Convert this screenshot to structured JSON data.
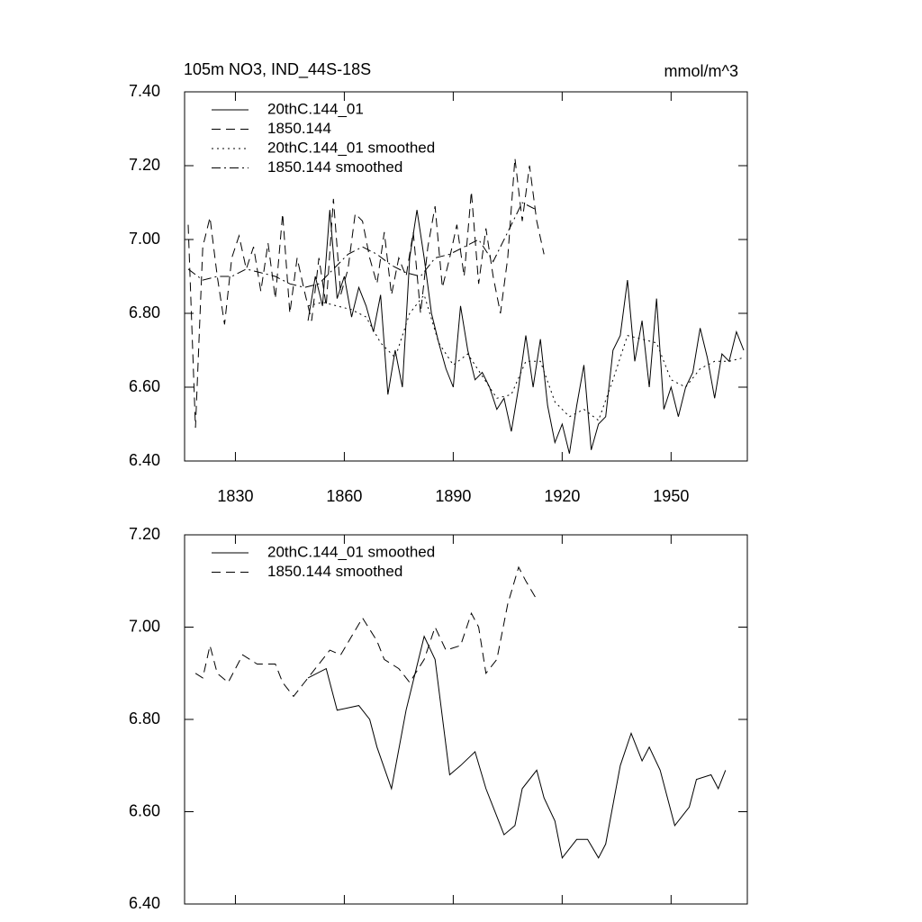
{
  "chart_data": [
    {
      "type": "line",
      "title": "105m NO3, IND_44S-18S",
      "units": "mmol/m^3",
      "xlim": [
        1816,
        1971
      ],
      "xticks": [
        1830,
        1860,
        1890,
        1920,
        1950
      ],
      "xtick_labels": true,
      "ylim": [
        6.4,
        7.4
      ],
      "yticks": [
        {
          "value": 6.4,
          "label": "6.40"
        },
        {
          "value": 6.6,
          "label": "6.60"
        },
        {
          "value": 6.8,
          "label": "6.80"
        },
        {
          "value": 7.0,
          "label": "7.00"
        },
        {
          "value": 7.2,
          "label": "7.20"
        },
        {
          "value": 7.4,
          "label": "7.40"
        }
      ],
      "series": [
        {
          "name": "20thC.144_01",
          "color": "#000000",
          "dash": "solid",
          "x": [
            1850,
            1852,
            1854,
            1856,
            1858,
            1860,
            1862,
            1864,
            1866,
            1868,
            1870,
            1872,
            1874,
            1876,
            1878,
            1880,
            1882,
            1884,
            1886,
            1888,
            1890,
            1892,
            1894,
            1896,
            1898,
            1900,
            1902,
            1904,
            1906,
            1908,
            1910,
            1912,
            1914,
            1916,
            1918,
            1920,
            1922,
            1924,
            1926,
            1928,
            1930,
            1932,
            1934,
            1936,
            1938,
            1940,
            1942,
            1944,
            1946,
            1948,
            1950,
            1952,
            1954,
            1956,
            1958,
            1960,
            1962,
            1964,
            1966,
            1968,
            1970
          ],
          "values": [
            6.78,
            6.9,
            6.82,
            7.08,
            6.84,
            6.9,
            6.79,
            6.87,
            6.82,
            6.75,
            6.85,
            6.58,
            6.7,
            6.6,
            6.95,
            7.08,
            6.95,
            6.8,
            6.72,
            6.65,
            6.6,
            6.82,
            6.7,
            6.62,
            6.64,
            6.6,
            6.54,
            6.57,
            6.48,
            6.6,
            6.74,
            6.6,
            6.73,
            6.55,
            6.45,
            6.5,
            6.42,
            6.55,
            6.66,
            6.43,
            6.5,
            6.52,
            6.7,
            6.74,
            6.89,
            6.67,
            6.78,
            6.6,
            6.84,
            6.54,
            6.6,
            6.52,
            6.6,
            6.64,
            6.76,
            6.68,
            6.57,
            6.69,
            6.67,
            6.75,
            6.7
          ]
        },
        {
          "name": "1850.144",
          "color": "#000000",
          "dash": "dashed",
          "x": [
            1817,
            1819,
            1821,
            1823,
            1825,
            1827,
            1829,
            1831,
            1833,
            1835,
            1837,
            1839,
            1841,
            1843,
            1845,
            1847,
            1849,
            1851,
            1853,
            1855,
            1857,
            1859,
            1861,
            1863,
            1865,
            1867,
            1869,
            1871,
            1873,
            1875,
            1877,
            1879,
            1881,
            1883,
            1885,
            1887,
            1889,
            1891,
            1893,
            1895,
            1897,
            1899,
            1901,
            1903,
            1905,
            1907,
            1909,
            1911,
            1913,
            1915
          ],
          "values": [
            7.04,
            6.49,
            6.98,
            7.06,
            6.9,
            6.77,
            6.95,
            7.01,
            6.92,
            6.98,
            6.86,
            6.99,
            6.84,
            7.07,
            6.8,
            6.95,
            6.86,
            6.78,
            6.95,
            6.82,
            7.11,
            6.85,
            6.92,
            7.07,
            7.05,
            6.95,
            6.88,
            7.02,
            6.85,
            6.95,
            6.9,
            7.02,
            6.8,
            6.98,
            7.09,
            6.87,
            6.95,
            7.04,
            6.9,
            7.13,
            6.88,
            7.03,
            6.9,
            6.8,
            6.95,
            7.22,
            7.05,
            7.2,
            7.05,
            6.96
          ]
        },
        {
          "name": "20thC.144_01 smoothed",
          "color": "#000000",
          "dash": "dotted",
          "x": [
            1850,
            1854,
            1858,
            1862,
            1866,
            1870,
            1874,
            1878,
            1882,
            1886,
            1890,
            1894,
            1898,
            1902,
            1906,
            1910,
            1914,
            1918,
            1922,
            1926,
            1930,
            1934,
            1938,
            1942,
            1946,
            1950,
            1954,
            1958,
            1962,
            1966,
            1970
          ],
          "values": [
            6.82,
            6.83,
            6.82,
            6.81,
            6.79,
            6.72,
            6.68,
            6.8,
            6.85,
            6.72,
            6.66,
            6.69,
            6.63,
            6.57,
            6.58,
            6.67,
            6.67,
            6.56,
            6.52,
            6.54,
            6.51,
            6.62,
            6.74,
            6.73,
            6.72,
            6.62,
            6.6,
            6.65,
            6.67,
            6.67,
            6.68
          ]
        },
        {
          "name": "1850.144 smoothed",
          "color": "#000000",
          "dash": "dashdot",
          "x": [
            1817,
            1821,
            1825,
            1829,
            1833,
            1837,
            1841,
            1845,
            1849,
            1853,
            1857,
            1861,
            1865,
            1869,
            1873,
            1877,
            1881,
            1885,
            1889,
            1893,
            1897,
            1901,
            1905,
            1909,
            1913
          ],
          "values": [
            6.92,
            6.89,
            6.9,
            6.9,
            6.92,
            6.91,
            6.9,
            6.88,
            6.87,
            6.88,
            6.92,
            6.96,
            6.98,
            6.96,
            6.93,
            6.91,
            6.9,
            6.95,
            6.96,
            6.98,
            7.0,
            6.94,
            7.02,
            7.1,
            7.08
          ]
        }
      ]
    },
    {
      "type": "line",
      "xlim": [
        1816,
        1971
      ],
      "xticks": [
        1830,
        1860,
        1890,
        1920,
        1950
      ],
      "xtick_labels": false,
      "ylim": [
        6.4,
        7.2
      ],
      "yticks": [
        {
          "value": 6.4,
          "label": "6.40"
        },
        {
          "value": 6.6,
          "label": "6.60"
        },
        {
          "value": 6.8,
          "label": "6.80"
        },
        {
          "value": 7.0,
          "label": "7.00"
        },
        {
          "value": 7.2,
          "label": "7.20"
        }
      ],
      "series": [
        {
          "name": "20thC.144_01 smoothed",
          "color": "#000000",
          "dash": "solid",
          "x": [
            1850,
            1855,
            1858,
            1864,
            1867,
            1869,
            1873,
            1877,
            1882,
            1885,
            1889,
            1892,
            1896,
            1899,
            1904,
            1907,
            1909,
            1913,
            1915,
            1918,
            1920,
            1924,
            1927,
            1930,
            1932,
            1936,
            1939,
            1942,
            1944,
            1947,
            1951,
            1955,
            1957,
            1961,
            1963,
            1965
          ],
          "values": [
            6.89,
            6.91,
            6.82,
            6.83,
            6.8,
            6.74,
            6.65,
            6.82,
            6.98,
            6.93,
            6.68,
            6.7,
            6.73,
            6.65,
            6.55,
            6.57,
            6.65,
            6.69,
            6.63,
            6.58,
            6.5,
            6.54,
            6.54,
            6.5,
            6.53,
            6.7,
            6.77,
            6.71,
            6.74,
            6.69,
            6.57,
            6.61,
            6.67,
            6.68,
            6.65,
            6.69
          ]
        },
        {
          "name": "1850.144 smoothed",
          "color": "#000000",
          "dash": "dashed",
          "x": [
            1819,
            1821,
            1823,
            1825,
            1828,
            1832,
            1836,
            1841,
            1843,
            1846,
            1849,
            1853,
            1856,
            1859,
            1862,
            1865,
            1869,
            1871,
            1875,
            1878,
            1882,
            1885,
            1888,
            1892,
            1895,
            1897,
            1899,
            1902,
            1905,
            1908,
            1910,
            1913
          ],
          "values": [
            6.9,
            6.89,
            6.96,
            6.9,
            6.88,
            6.94,
            6.92,
            6.92,
            6.88,
            6.85,
            6.88,
            6.92,
            6.95,
            6.94,
            6.98,
            7.02,
            6.97,
            6.93,
            6.91,
            6.88,
            6.93,
            7.0,
            6.95,
            6.96,
            7.03,
            7.0,
            6.9,
            6.93,
            7.05,
            7.13,
            7.1,
            7.06
          ]
        }
      ]
    }
  ]
}
